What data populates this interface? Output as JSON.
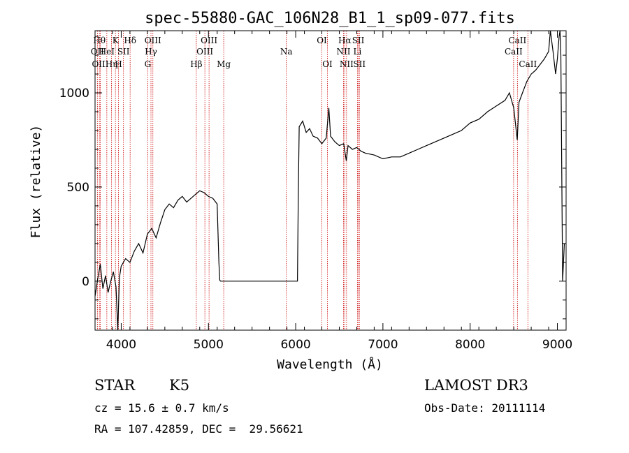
{
  "chart_data": {
    "type": "line",
    "title": "spec-55880-GAC_106N28_B1_1_sp09-077.fits",
    "xlabel": "Wavelength (Å)",
    "ylabel": "Flux (relative)",
    "xlim": [
      3700,
      9100
    ],
    "ylim": [
      -260,
      1330
    ],
    "x_ticks": [
      4000,
      5000,
      6000,
      7000,
      8000,
      9000
    ],
    "y_ticks": [
      0,
      500,
      1000
    ],
    "series": [
      {
        "color": "#000000",
        "x": [
          3700,
          3730,
          3760,
          3790,
          3820,
          3850,
          3880,
          3910,
          3940,
          3960,
          3980,
          4000,
          4050,
          4100,
          4150,
          4200,
          4250,
          4300,
          4350,
          4400,
          4450,
          4500,
          4550,
          4600,
          4650,
          4700,
          4750,
          4800,
          4850,
          4900,
          4950,
          5000,
          5050,
          5100,
          5120,
          5130,
          5140,
          5200,
          5500,
          5800,
          6000,
          6020,
          6030,
          6040,
          6080,
          6120,
          6160,
          6200,
          6250,
          6300,
          6350,
          6380,
          6400,
          6450,
          6500,
          6550,
          6580,
          6600,
          6650,
          6700,
          6750,
          6800,
          6900,
          7000,
          7100,
          7200,
          7300,
          7400,
          7500,
          7600,
          7700,
          7800,
          7900,
          8000,
          8100,
          8200,
          8300,
          8400,
          8450,
          8500,
          8540,
          8560,
          8600,
          8650,
          8700,
          8750,
          8800,
          8850,
          8900,
          8920,
          8950,
          8980,
          9000,
          9020,
          9030,
          9040,
          9060,
          9080
        ],
        "y": [
          -80,
          10,
          90,
          -40,
          30,
          -60,
          0,
          50,
          -30,
          -260,
          20,
          80,
          120,
          100,
          160,
          200,
          150,
          250,
          280,
          230,
          310,
          380,
          410,
          390,
          430,
          450,
          420,
          440,
          460,
          480,
          470,
          450,
          440,
          410,
          100,
          5,
          0,
          0,
          0,
          0,
          0,
          0,
          450,
          820,
          850,
          790,
          810,
          770,
          760,
          730,
          760,
          920,
          770,
          740,
          720,
          730,
          640,
          720,
          700,
          710,
          690,
          680,
          670,
          650,
          660,
          660,
          680,
          700,
          720,
          740,
          760,
          780,
          800,
          840,
          860,
          900,
          930,
          960,
          1000,
          920,
          750,
          950,
          1000,
          1060,
          1100,
          1120,
          1150,
          1180,
          1220,
          1330,
          1220,
          1100,
          1180,
          1300,
          1330,
          1200,
          0,
          200
        ]
      }
    ],
    "spectral_lines": [
      {
        "wavelength": 3750,
        "label": "Hθ",
        "row": 1
      },
      {
        "wavelength": 3727,
        "label": "OII",
        "row": 2
      },
      {
        "wavelength": 3760,
        "label": "OIII",
        "row": 3
      },
      {
        "wavelength": 3835,
        "label": "HeI",
        "row": 2
      },
      {
        "wavelength": 3889,
        "label": "Hη",
        "row": 3
      },
      {
        "wavelength": 3934,
        "label": "K",
        "row": 1
      },
      {
        "wavelength": 3969,
        "label": "H",
        "row": 3
      },
      {
        "wavelength": 4026,
        "label": "SII",
        "row": 2
      },
      {
        "wavelength": 4102,
        "label": "Hδ",
        "row": 1
      },
      {
        "wavelength": 4304,
        "label": "G",
        "row": 3
      },
      {
        "wavelength": 4341,
        "label": "Hγ",
        "row": 2
      },
      {
        "wavelength": 4363,
        "label": "OIII",
        "row": 1
      },
      {
        "wavelength": 4861,
        "label": "Hβ",
        "row": 3
      },
      {
        "wavelength": 4959,
        "label": "OIII",
        "row": 2
      },
      {
        "wavelength": 5007,
        "label": "OIII",
        "row": 1
      },
      {
        "wavelength": 5175,
        "label": "Mg",
        "row": 3
      },
      {
        "wavelength": 5893,
        "label": "Na",
        "row": 2
      },
      {
        "wavelength": 6300,
        "label": "OI",
        "row": 1
      },
      {
        "wavelength": 6364,
        "label": "OI",
        "row": 3
      },
      {
        "wavelength": 6548,
        "label": "NII",
        "row": 2
      },
      {
        "wavelength": 6563,
        "label": "Hα",
        "row": 1
      },
      {
        "wavelength": 6583,
        "label": "NII",
        "row": 3
      },
      {
        "wavelength": 6708,
        "label": "Li",
        "row": 2
      },
      {
        "wavelength": 6717,
        "label": "SII",
        "row": 1
      },
      {
        "wavelength": 6731,
        "label": "SII",
        "row": 3
      },
      {
        "wavelength": 8498,
        "label": "CaII",
        "row": 2
      },
      {
        "wavelength": 8542,
        "label": "CaII",
        "row": 1
      },
      {
        "wavelength": 8662,
        "label": "CaII",
        "row": 3
      }
    ],
    "line_color": "#cc0000"
  },
  "info": {
    "class": "STAR",
    "subclass": "K5",
    "survey": "LAMOST DR3",
    "cz": "cz = 15.6 ± 0.7 km/s",
    "obs_date": "Obs-Date: 20111114",
    "coords": "RA = 107.42859, DEC =  29.56621"
  }
}
